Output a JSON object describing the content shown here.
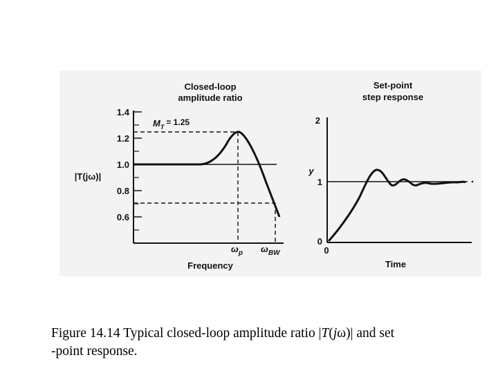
{
  "left_panel": {
    "title_line1": "Closed-loop",
    "title_line2": "amplitude ratio",
    "y_axis_label": "|T(jω)|",
    "y_ticks": [
      "1.4",
      "1.2",
      "1.0",
      "0.8",
      "0.6"
    ],
    "annotation": {
      "symbol": "M",
      "subscript": "T",
      "value": "= 1.25"
    },
    "x_marker_p": {
      "symbol": "ω",
      "subscript": "p"
    },
    "x_marker_bw": {
      "symbol": "ω",
      "subscript": "BW"
    },
    "x_axis_label": "Frequency"
  },
  "right_panel": {
    "title_line1": "Set-point",
    "title_line2": "step response",
    "y_axis_label": "y",
    "y_ticks": [
      "2",
      "1",
      "0"
    ],
    "x_origin_label": "0",
    "x_axis_label": "Time"
  },
  "caption": {
    "line1_prefix": "Figure 14.14 Typical closed-loop amplitude ratio |",
    "line1_italic": "T",
    "line1_paren": "(",
    "line1_j": "j",
    "line1_omega": "ω",
    "line1_suffix": ")| and set",
    "line2": "-point response."
  }
}
